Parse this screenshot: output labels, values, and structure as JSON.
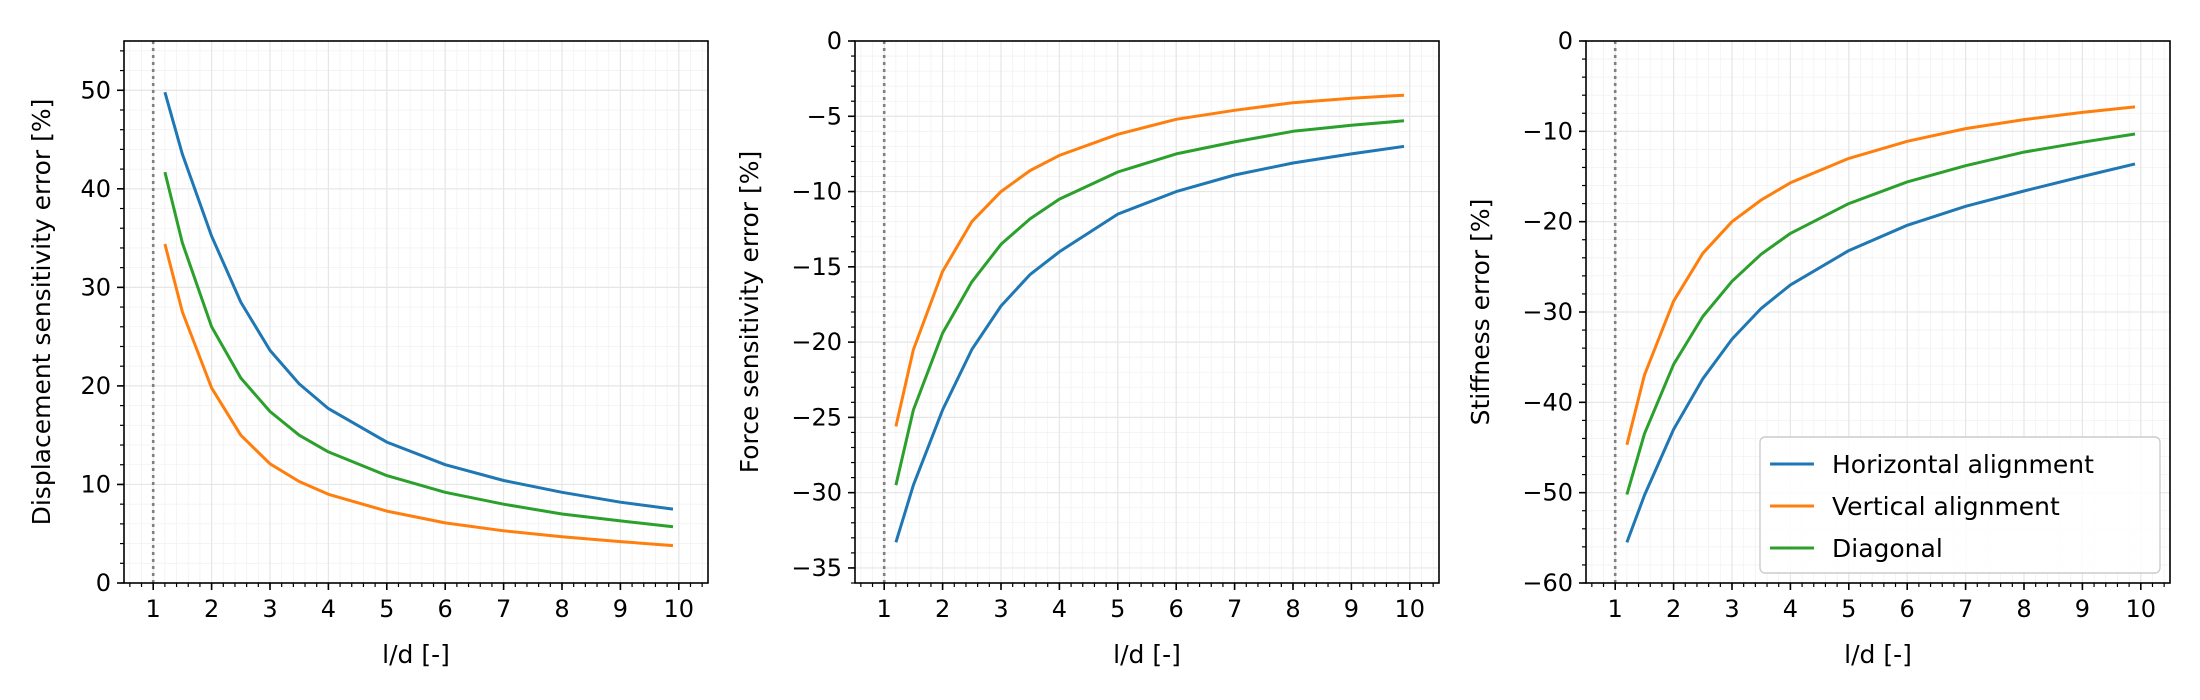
{
  "colors": {
    "horizontal": "#1f77b4",
    "vertical": "#ff7f0e",
    "diagonal": "#2ca02c",
    "grid": "#e6e6e6",
    "reference_line": "#808080"
  },
  "legend": {
    "position": "lower-right",
    "panel": 2,
    "entries": [
      "Horizontal alignment",
      "Vertical alignment",
      "Diagonal"
    ]
  },
  "chart_data": [
    {
      "type": "line",
      "xlabel": "l/d [-]",
      "ylabel": "Displacement sensitivity error [%]",
      "xlim": [
        0.5,
        10.5
      ],
      "ylim": [
        0,
        55
      ],
      "xticks": [
        1,
        2,
        3,
        4,
        5,
        6,
        7,
        8,
        9,
        10
      ],
      "yticks": [
        0,
        10,
        20,
        30,
        40,
        50
      ],
      "grid": true,
      "vline": 1,
      "x": [
        1.2,
        1.5,
        2,
        2.5,
        3,
        3.5,
        4,
        5,
        6,
        7,
        8,
        9,
        9.9
      ],
      "series": [
        {
          "name": "Horizontal alignment",
          "color_key": "horizontal",
          "values": [
            49.8,
            43.5,
            35.2,
            28.5,
            23.6,
            20.2,
            17.7,
            14.3,
            12.0,
            10.4,
            9.2,
            8.2,
            7.5
          ]
        },
        {
          "name": "Vertical alignment",
          "color_key": "vertical",
          "values": [
            34.4,
            27.5,
            19.8,
            15.0,
            12.1,
            10.3,
            9.0,
            7.3,
            6.1,
            5.3,
            4.7,
            4.2,
            3.8
          ]
        },
        {
          "name": "Diagonal",
          "color_key": "diagonal",
          "values": [
            41.7,
            34.5,
            26.0,
            20.8,
            17.4,
            15.0,
            13.3,
            10.9,
            9.2,
            8.0,
            7.0,
            6.3,
            5.7
          ]
        }
      ]
    },
    {
      "type": "line",
      "xlabel": "l/d [-]",
      "ylabel": "Force sensitivity error [%]",
      "xlim": [
        0.5,
        10.5
      ],
      "ylim": [
        -36,
        0
      ],
      "xticks": [
        1,
        2,
        3,
        4,
        5,
        6,
        7,
        8,
        9,
        10
      ],
      "yticks": [
        0,
        -5,
        -10,
        -15,
        -20,
        -25,
        -30,
        -35
      ],
      "grid": true,
      "vline": 1,
      "x": [
        1.2,
        1.5,
        2,
        2.5,
        3,
        3.5,
        4,
        5,
        6,
        7,
        8,
        9,
        9.9
      ],
      "series": [
        {
          "name": "Horizontal alignment",
          "color_key": "horizontal",
          "values": [
            -33.3,
            -29.5,
            -24.5,
            -20.5,
            -17.6,
            -15.5,
            -14.0,
            -11.5,
            -10.0,
            -8.9,
            -8.1,
            -7.5,
            -7.0
          ]
        },
        {
          "name": "Vertical alignment",
          "color_key": "vertical",
          "values": [
            -25.6,
            -20.5,
            -15.3,
            -12.0,
            -10.0,
            -8.6,
            -7.6,
            -6.2,
            -5.2,
            -4.6,
            -4.1,
            -3.8,
            -3.6
          ]
        },
        {
          "name": "Diagonal",
          "color_key": "diagonal",
          "values": [
            -29.5,
            -24.5,
            -19.4,
            -16.0,
            -13.5,
            -11.8,
            -10.5,
            -8.7,
            -7.5,
            -6.7,
            -6.0,
            -5.6,
            -5.3
          ]
        }
      ]
    },
    {
      "type": "line",
      "xlabel": "l/d [-]",
      "ylabel": "Stiffness error [%]",
      "xlim": [
        0.5,
        10.5
      ],
      "ylim": [
        -60,
        0
      ],
      "xticks": [
        1,
        2,
        3,
        4,
        5,
        6,
        7,
        8,
        9,
        10
      ],
      "yticks": [
        0,
        -10,
        -20,
        -30,
        -40,
        -50,
        -60
      ],
      "grid": true,
      "vline": 1,
      "x": [
        1.2,
        1.5,
        2,
        2.5,
        3,
        3.5,
        4,
        5,
        6,
        7,
        8,
        9,
        9.9
      ],
      "series": [
        {
          "name": "Horizontal alignment",
          "color_key": "horizontal",
          "values": [
            -55.5,
            -50.3,
            -43.0,
            -37.4,
            -33.0,
            -29.6,
            -27.0,
            -23.2,
            -20.4,
            -18.3,
            -16.6,
            -15.0,
            -13.6
          ]
        },
        {
          "name": "Vertical alignment",
          "color_key": "vertical",
          "values": [
            -44.7,
            -37.0,
            -28.8,
            -23.5,
            -20.0,
            -17.6,
            -15.7,
            -13.0,
            -11.1,
            -9.7,
            -8.7,
            -7.9,
            -7.3
          ]
        },
        {
          "name": "Diagonal",
          "color_key": "diagonal",
          "values": [
            -50.2,
            -43.5,
            -35.8,
            -30.5,
            -26.6,
            -23.6,
            -21.3,
            -18.0,
            -15.6,
            -13.8,
            -12.3,
            -11.2,
            -10.3
          ]
        }
      ]
    }
  ]
}
